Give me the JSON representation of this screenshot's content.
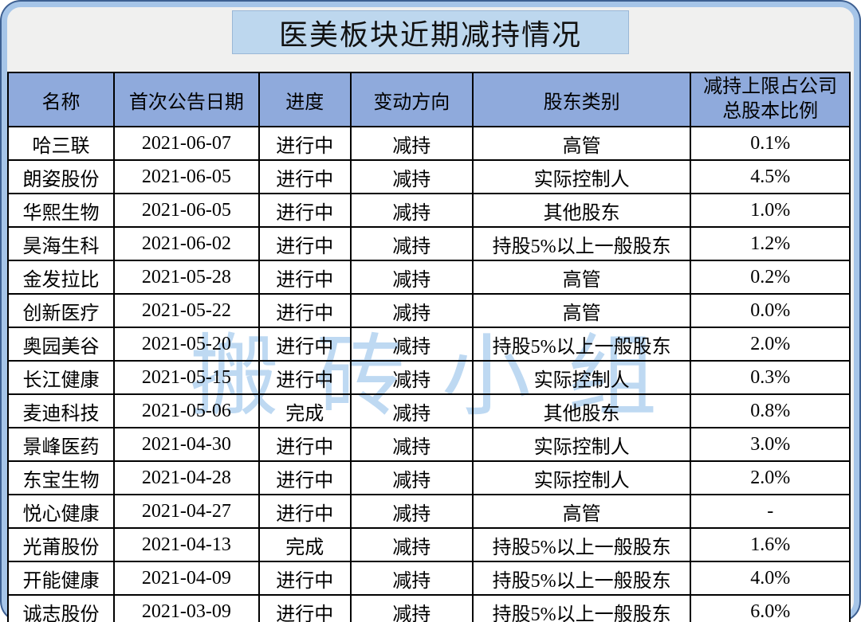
{
  "title": "医美板块近期减持情况",
  "watermark": "搬砖小组",
  "colors": {
    "frame_border": "#a6c5e8",
    "frame_outline": "#3d5f91",
    "inner_background": "#f0f0ef",
    "title_background": "#bdd7ee",
    "header_background": "#8faadc",
    "grid_line": "#000000",
    "watermark_color": "#bed9f2"
  },
  "table": {
    "ratio_header_lines": [
      "减持上限占公司",
      "总股本比例"
    ]
  },
  "chart_data": {
    "type": "table",
    "title": "医美板块近期减持情况",
    "columns": [
      "名称",
      "首次公告日期",
      "进度",
      "变动方向",
      "股东类别",
      "减持上限占公司总股本比例"
    ],
    "rows": [
      [
        "哈三联",
        "2021-06-07",
        "进行中",
        "减持",
        "高管",
        "0.1%"
      ],
      [
        "朗姿股份",
        "2021-06-05",
        "进行中",
        "减持",
        "实际控制人",
        "4.5%"
      ],
      [
        "华熙生物",
        "2021-06-05",
        "进行中",
        "减持",
        "其他股东",
        "1.0%"
      ],
      [
        "昊海生科",
        "2021-06-02",
        "进行中",
        "减持",
        "持股5%以上一般股东",
        "1.2%"
      ],
      [
        "金发拉比",
        "2021-05-28",
        "进行中",
        "减持",
        "高管",
        "0.2%"
      ],
      [
        "创新医疗",
        "2021-05-22",
        "进行中",
        "减持",
        "高管",
        "0.0%"
      ],
      [
        "奥园美谷",
        "2021-05-20",
        "进行中",
        "减持",
        "持股5%以上一般股东",
        "2.0%"
      ],
      [
        "长江健康",
        "2021-05-15",
        "进行中",
        "减持",
        "实际控制人",
        "0.3%"
      ],
      [
        "麦迪科技",
        "2021-05-06",
        "完成",
        "减持",
        "其他股东",
        "0.8%"
      ],
      [
        "景峰医药",
        "2021-04-30",
        "进行中",
        "减持",
        "实际控制人",
        "3.0%"
      ],
      [
        "东宝生物",
        "2021-04-28",
        "进行中",
        "减持",
        "实际控制人",
        "2.0%"
      ],
      [
        "悦心健康",
        "2021-04-27",
        "进行中",
        "减持",
        "高管",
        "-"
      ],
      [
        "光莆股份",
        "2021-04-13",
        "完成",
        "减持",
        "持股5%以上一般股东",
        "1.6%"
      ],
      [
        "开能健康",
        "2021-04-09",
        "进行中",
        "减持",
        "持股5%以上一般股东",
        "4.0%"
      ],
      [
        "诚志股份",
        "2021-03-09",
        "进行中",
        "减持",
        "持股5%以上一般股东",
        "6.0%"
      ]
    ]
  }
}
